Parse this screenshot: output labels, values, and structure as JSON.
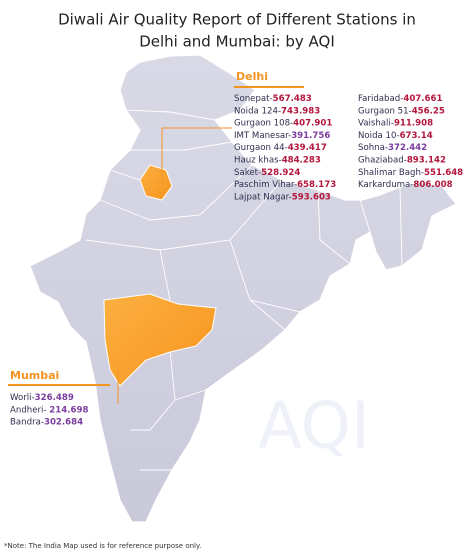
{
  "header": {
    "title_lines": [
      "Diwali Air Quality Report of Different Stations in",
      "Delhi and Mumbai: by AQI"
    ]
  },
  "delhi": {
    "name": "Delhi",
    "left": [
      {
        "label": "Sonepat-",
        "value": 567.483,
        "color": "#b3163d"
      },
      {
        "label": "Noida 124-",
        "value": 743.983,
        "color": "#b3163d"
      },
      {
        "label": "Gurgaon 108-",
        "value": 407.901,
        "color": "#b3163d"
      },
      {
        "label": "IMT Manesar-",
        "value": 391.756,
        "color": "#7a3c9e"
      },
      {
        "label": "Gurgaon 44-",
        "value": 439.417,
        "color": "#b3163d"
      },
      {
        "label": "Hauz khas-",
        "value": 484.283,
        "color": "#b3163d"
      },
      {
        "label": "Saket-",
        "value": 528.924,
        "color": "#b3163d"
      },
      {
        "label": "Paschim Vihar-",
        "value": 658.173,
        "color": "#b3163d"
      },
      {
        "label": "Lajpat Nagar-",
        "value": 593.603,
        "color": "#b3163d"
      }
    ],
    "right": [
      {
        "label": "Faridabad-",
        "value": 407.661,
        "color": "#b3163d"
      },
      {
        "label": "Gurgaon 51-",
        "value": 456.25,
        "color": "#b3163d"
      },
      {
        "label": "Vaishali-",
        "value": 911.908,
        "color": "#b3163d"
      },
      {
        "label": "Noida 10-",
        "value": 673.14,
        "color": "#b3163d"
      },
      {
        "label": "Sohna-",
        "value": 372.442,
        "color": "#7a3c9e"
      },
      {
        "label": "Ghaziabad-",
        "value": 893.142,
        "color": "#b3163d"
      },
      {
        "label": "Shalimar Bagh-",
        "value": 551.648,
        "color": "#b3163d"
      },
      {
        "label": "Karkarduma-",
        "value": 806.008,
        "color": "#b3163d"
      }
    ]
  },
  "mumbai": {
    "name": "Mumbai",
    "stations": [
      {
        "label": "Worli-",
        "value": 326.489,
        "color": "#7a3c9e"
      },
      {
        "label": "Andheri- ",
        "value": 214.698,
        "color": "#7a3c9e"
      },
      {
        "label": "Bandra-",
        "value": 302.684,
        "color": "#7a3c9e"
      }
    ]
  },
  "watermark": "AQI",
  "note": "*Note: The India Map used is for reference purpose only."
}
